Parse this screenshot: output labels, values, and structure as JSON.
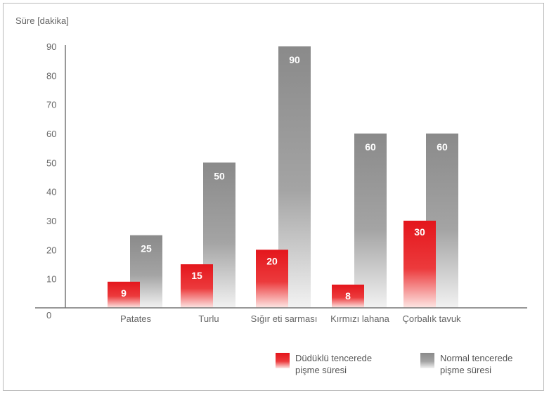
{
  "chart_data": {
    "type": "bar",
    "ylabel": "Süre [dakika]",
    "ylim": [
      0,
      90
    ],
    "yticks": [
      0,
      10,
      20,
      30,
      40,
      50,
      60,
      70,
      80,
      90
    ],
    "categories": [
      "Patates",
      "Turlu",
      "Sığır eti sarması",
      "Kırmızı lahana",
      "Çorbalık tavuk"
    ],
    "series": [
      {
        "name": "Düdüklü tencerede pişme süresi",
        "color": "#e8262a",
        "values": [
          9,
          15,
          20,
          8,
          30
        ]
      },
      {
        "name": "Normal tencerede pişme süresi",
        "color": "#8a8a8a",
        "values": [
          25,
          50,
          90,
          60,
          60
        ]
      }
    ],
    "legend": {
      "placement": "bottom-right",
      "items": [
        {
          "line1": "Düdüklü tencerede",
          "line2": "pişme süresi"
        },
        {
          "line1": "Normal tencerede",
          "line2": "pişme süresi"
        }
      ]
    }
  }
}
